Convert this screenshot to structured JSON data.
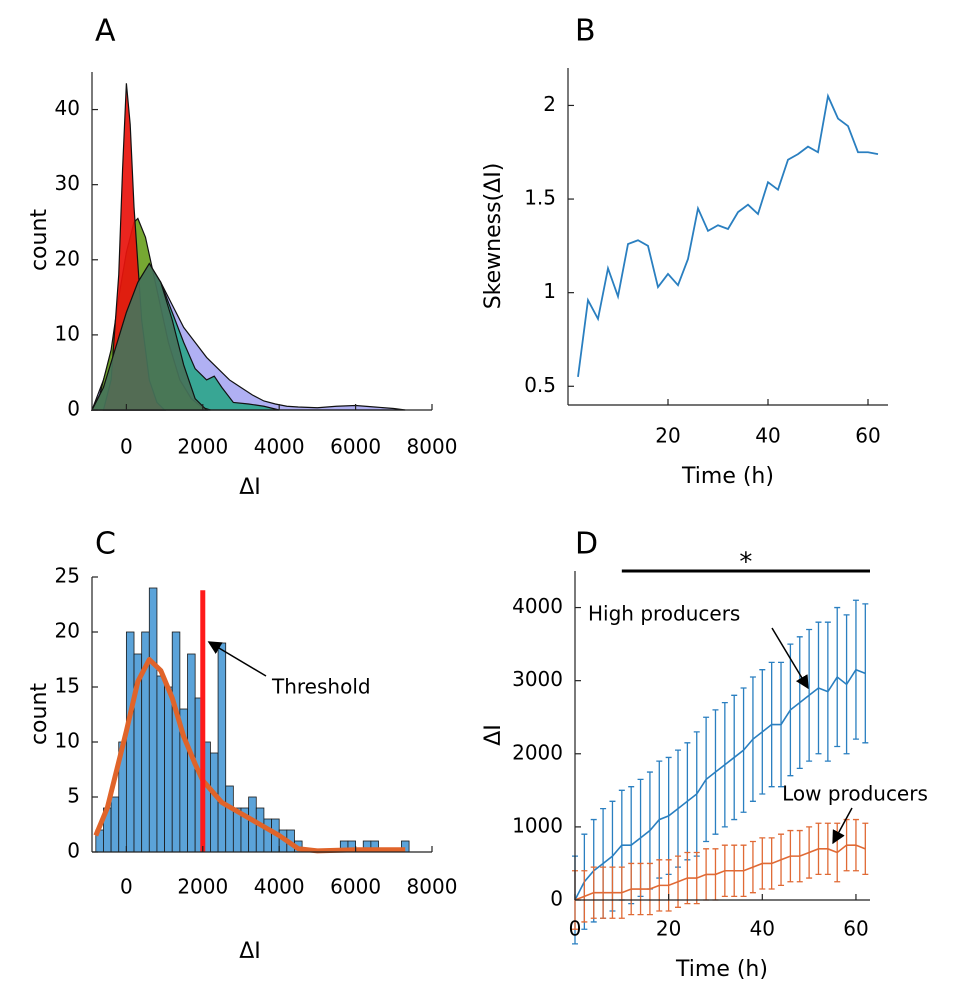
{
  "chart_data": [
    {
      "type": "area",
      "panel_label": "A",
      "x_label": "ΔI",
      "y_label": "count",
      "xlim": [
        -900,
        8000
      ],
      "ylim": [
        0,
        45
      ],
      "xticks": [
        0,
        2000,
        4000,
        6000,
        8000
      ],
      "yticks": [
        0,
        10,
        20,
        30,
        40
      ],
      "series": [
        {
          "color": "#a9a9f2",
          "x": [
            -900,
            -600,
            -300,
            0,
            300,
            600,
            900,
            1200,
            1500,
            1800,
            2100,
            2400,
            2700,
            3000,
            3300,
            3600,
            3900,
            4200,
            4500,
            5000,
            5500,
            6000,
            6500,
            7000,
            7300
          ],
          "values": [
            0,
            4,
            9,
            13,
            17,
            19,
            17,
            14,
            11,
            9,
            7,
            5.5,
            4,
            3,
            2,
            1.2,
            0.8,
            0.5,
            0.4,
            0.3,
            0.5,
            0.6,
            0.4,
            0.2,
            0
          ]
        },
        {
          "color": "#2ea58c",
          "x": [
            -900,
            -600,
            -300,
            0,
            300,
            600,
            900,
            1200,
            1500,
            1800,
            2100,
            2300,
            2500,
            2800,
            3200,
            3600,
            4000
          ],
          "values": [
            0,
            3,
            8,
            13,
            17,
            19.5,
            17,
            13,
            9,
            5.5,
            4,
            4.5,
            3,
            1,
            0.8,
            0.5,
            0
          ]
        },
        {
          "color": "#6aa121",
          "x": [
            -900,
            -700,
            -400,
            -200,
            0,
            200,
            300,
            500,
            800,
            1100,
            1400,
            1700,
            2000,
            2200
          ],
          "values": [
            0,
            2,
            8,
            15,
            21,
            25,
            25.5,
            23,
            16,
            9,
            4,
            1.5,
            0.3,
            0
          ]
        },
        {
          "color": "#e8120c",
          "x": [
            -600,
            -400,
            -200,
            -100,
            0,
            100,
            200,
            400,
            600,
            800,
            1000
          ],
          "values": [
            0,
            4,
            18,
            32,
            43.5,
            38,
            27,
            12,
            4,
            1,
            0
          ]
        },
        {
          "color": "#47735a",
          "x": [
            -900,
            -600,
            -300,
            0,
            300,
            600,
            900,
            1200,
            1500,
            1800,
            2100
          ],
          "values": [
            0,
            3,
            8,
            13,
            17,
            19.5,
            17,
            12,
            6,
            1.5,
            0
          ]
        }
      ]
    },
    {
      "type": "line",
      "panel_label": "B",
      "x_label": "Time (h)",
      "y_label": "Skewness(ΔI)",
      "xlim": [
        0,
        64
      ],
      "ylim": [
        0.4,
        2.2
      ],
      "xticks": [
        20,
        40,
        60
      ],
      "yticks": [
        0.5,
        1,
        1.5,
        2
      ],
      "x": [
        2,
        4,
        6,
        8,
        10,
        12,
        14,
        16,
        18,
        20,
        22,
        24,
        26,
        28,
        30,
        32,
        34,
        36,
        38,
        40,
        42,
        44,
        46,
        48,
        50,
        52,
        54,
        56,
        58,
        60,
        62
      ],
      "series": [
        {
          "color": "#2a7fc0",
          "values": [
            0.55,
            0.96,
            0.86,
            1.13,
            0.98,
            1.26,
            1.28,
            1.25,
            1.03,
            1.1,
            1.04,
            1.18,
            1.45,
            1.33,
            1.36,
            1.34,
            1.43,
            1.47,
            1.42,
            1.59,
            1.55,
            1.71,
            1.74,
            1.78,
            1.75,
            2.05,
            1.93,
            1.89,
            1.75,
            1.75,
            1.74
          ]
        }
      ]
    },
    {
      "type": "histogram",
      "panel_label": "C",
      "x_label": "ΔI",
      "y_label": "count",
      "xlim": [
        -900,
        8000
      ],
      "ylim": [
        0,
        25
      ],
      "xticks": [
        0,
        2000,
        4000,
        6000,
        8000
      ],
      "yticks": [
        0,
        5,
        10,
        15,
        20,
        25
      ],
      "bins": [
        -800,
        -600,
        -400,
        -200,
        0,
        200,
        400,
        600,
        800,
        1000,
        1200,
        1400,
        1600,
        1800,
        2000,
        2200,
        2400,
        2600,
        2800,
        3000,
        3200,
        3400,
        3600,
        3800,
        4000,
        4200,
        4400,
        4600,
        4800,
        5000,
        5200,
        5400,
        5600,
        5800,
        6000,
        6200,
        6400,
        6600,
        6800,
        7000,
        7200,
        7400
      ],
      "values": [
        2,
        4,
        5,
        10,
        20,
        18,
        20,
        24,
        16,
        15,
        20,
        13,
        18,
        14,
        10,
        9,
        19,
        6,
        4,
        4,
        5,
        4,
        3,
        3,
        2,
        2,
        1,
        0,
        0,
        0,
        0,
        0,
        1,
        1,
        0,
        1,
        1,
        0,
        0,
        0,
        1
      ],
      "color": "#5ba3d9",
      "fit": {
        "color": "#e0642a",
        "x": [
          -800,
          -500,
          0,
          300,
          600,
          900,
          1200,
          1500,
          1800,
          2000,
          2500,
          3000,
          3500,
          4000,
          4500,
          5000,
          6000,
          7300
        ],
        "values": [
          1.5,
          4,
          11,
          15.5,
          17.5,
          16.5,
          14,
          10.5,
          8,
          6.5,
          4.5,
          3.5,
          2.5,
          1.5,
          0.3,
          0.1,
          0.2,
          0.2
        ]
      },
      "threshold": {
        "x": 2000,
        "y": 23.8,
        "color": "#ff1a1a",
        "label": "Threshold"
      }
    },
    {
      "type": "errorbar",
      "panel_label": "D",
      "x_label": "Time (h)",
      "y_label": "ΔI",
      "xlim": [
        0,
        63
      ],
      "ylim": [
        0,
        4500
      ],
      "xticks": [
        0,
        20,
        40,
        60
      ],
      "yticks": [
        0,
        1000,
        2000,
        3000,
        4000
      ],
      "x": [
        0,
        2,
        4,
        6,
        8,
        10,
        12,
        14,
        16,
        18,
        20,
        22,
        24,
        26,
        28,
        30,
        32,
        34,
        36,
        38,
        40,
        42,
        44,
        46,
        48,
        50,
        52,
        54,
        56,
        58,
        60,
        62
      ],
      "series": [
        {
          "name": "High producers",
          "color": "#2a7fc0",
          "values": [
            0,
            250,
            400,
            500,
            600,
            750,
            750,
            850,
            950,
            1100,
            1150,
            1250,
            1350,
            1450,
            1650,
            1750,
            1850,
            1950,
            2050,
            2200,
            2300,
            2400,
            2400,
            2600,
            2700,
            2800,
            2900,
            2850,
            3050,
            2950,
            3150,
            3100
          ],
          "errors": [
            600,
            650,
            700,
            750,
            750,
            750,
            800,
            800,
            800,
            800,
            800,
            800,
            800,
            850,
            850,
            850,
            850,
            850,
            850,
            850,
            850,
            850,
            850,
            900,
            900,
            900,
            900,
            950,
            950,
            950,
            950,
            950
          ]
        },
        {
          "name": "Low producers",
          "color": "#e06a35",
          "values": [
            0,
            50,
            100,
            100,
            100,
            100,
            150,
            150,
            150,
            200,
            200,
            250,
            300,
            300,
            350,
            350,
            400,
            400,
            400,
            450,
            500,
            500,
            550,
            600,
            600,
            650,
            700,
            700,
            650,
            750,
            750,
            700
          ],
          "errors": [
            400,
            350,
            350,
            350,
            350,
            350,
            350,
            350,
            350,
            350,
            350,
            350,
            350,
            350,
            350,
            350,
            350,
            350,
            350,
            350,
            350,
            350,
            350,
            350,
            350,
            350,
            350,
            350,
            400,
            350,
            350,
            350
          ]
        }
      ],
      "significance": {
        "label": "*",
        "x": [
          10,
          63
        ]
      }
    }
  ]
}
